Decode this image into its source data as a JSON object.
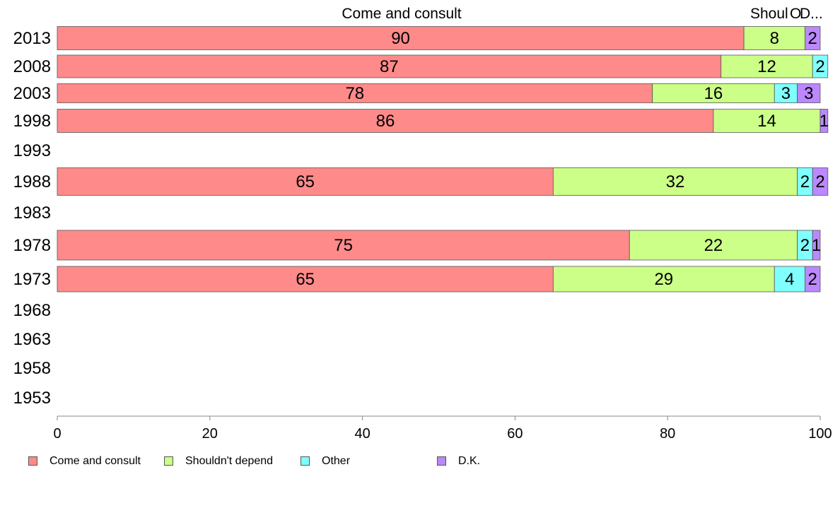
{
  "chart_data": {
    "type": "bar",
    "orientation": "horizontal",
    "stacked": true,
    "title": "",
    "xlabel": "",
    "ylabel": "",
    "xlim": [
      0,
      100
    ],
    "x_ticks": [
      "0",
      "20",
      "40",
      "60",
      "80",
      "100"
    ],
    "categories": [
      "2013",
      "2008",
      "2003",
      "1998",
      "1993",
      "1988",
      "1983",
      "1978",
      "1973",
      "1968",
      "1963",
      "1958",
      "1953"
    ],
    "top_labels": [
      "Come and consult",
      "Shoul",
      "O",
      "D..."
    ],
    "series": [
      {
        "name": "Come and consult",
        "color": "#ff8a8a",
        "values": [
          90,
          87,
          78,
          86,
          null,
          65,
          null,
          75,
          65,
          null,
          null,
          null,
          null
        ]
      },
      {
        "name": "Shouldn't depend",
        "color": "#ccff88",
        "values": [
          8,
          12,
          16,
          14,
          null,
          32,
          null,
          22,
          29,
          null,
          null,
          null,
          null
        ]
      },
      {
        "name": "Other",
        "color": "#80ffff",
        "values": [
          0,
          2,
          3,
          0,
          null,
          2,
          null,
          2,
          4,
          null,
          null,
          null,
          null
        ]
      },
      {
        "name": "D.K.",
        "color": "#bb88ff",
        "values": [
          2,
          0,
          3,
          1,
          null,
          2,
          null,
          1,
          2,
          null,
          null,
          null,
          null
        ]
      }
    ],
    "legend_position": "bottom-left",
    "grid": false
  }
}
